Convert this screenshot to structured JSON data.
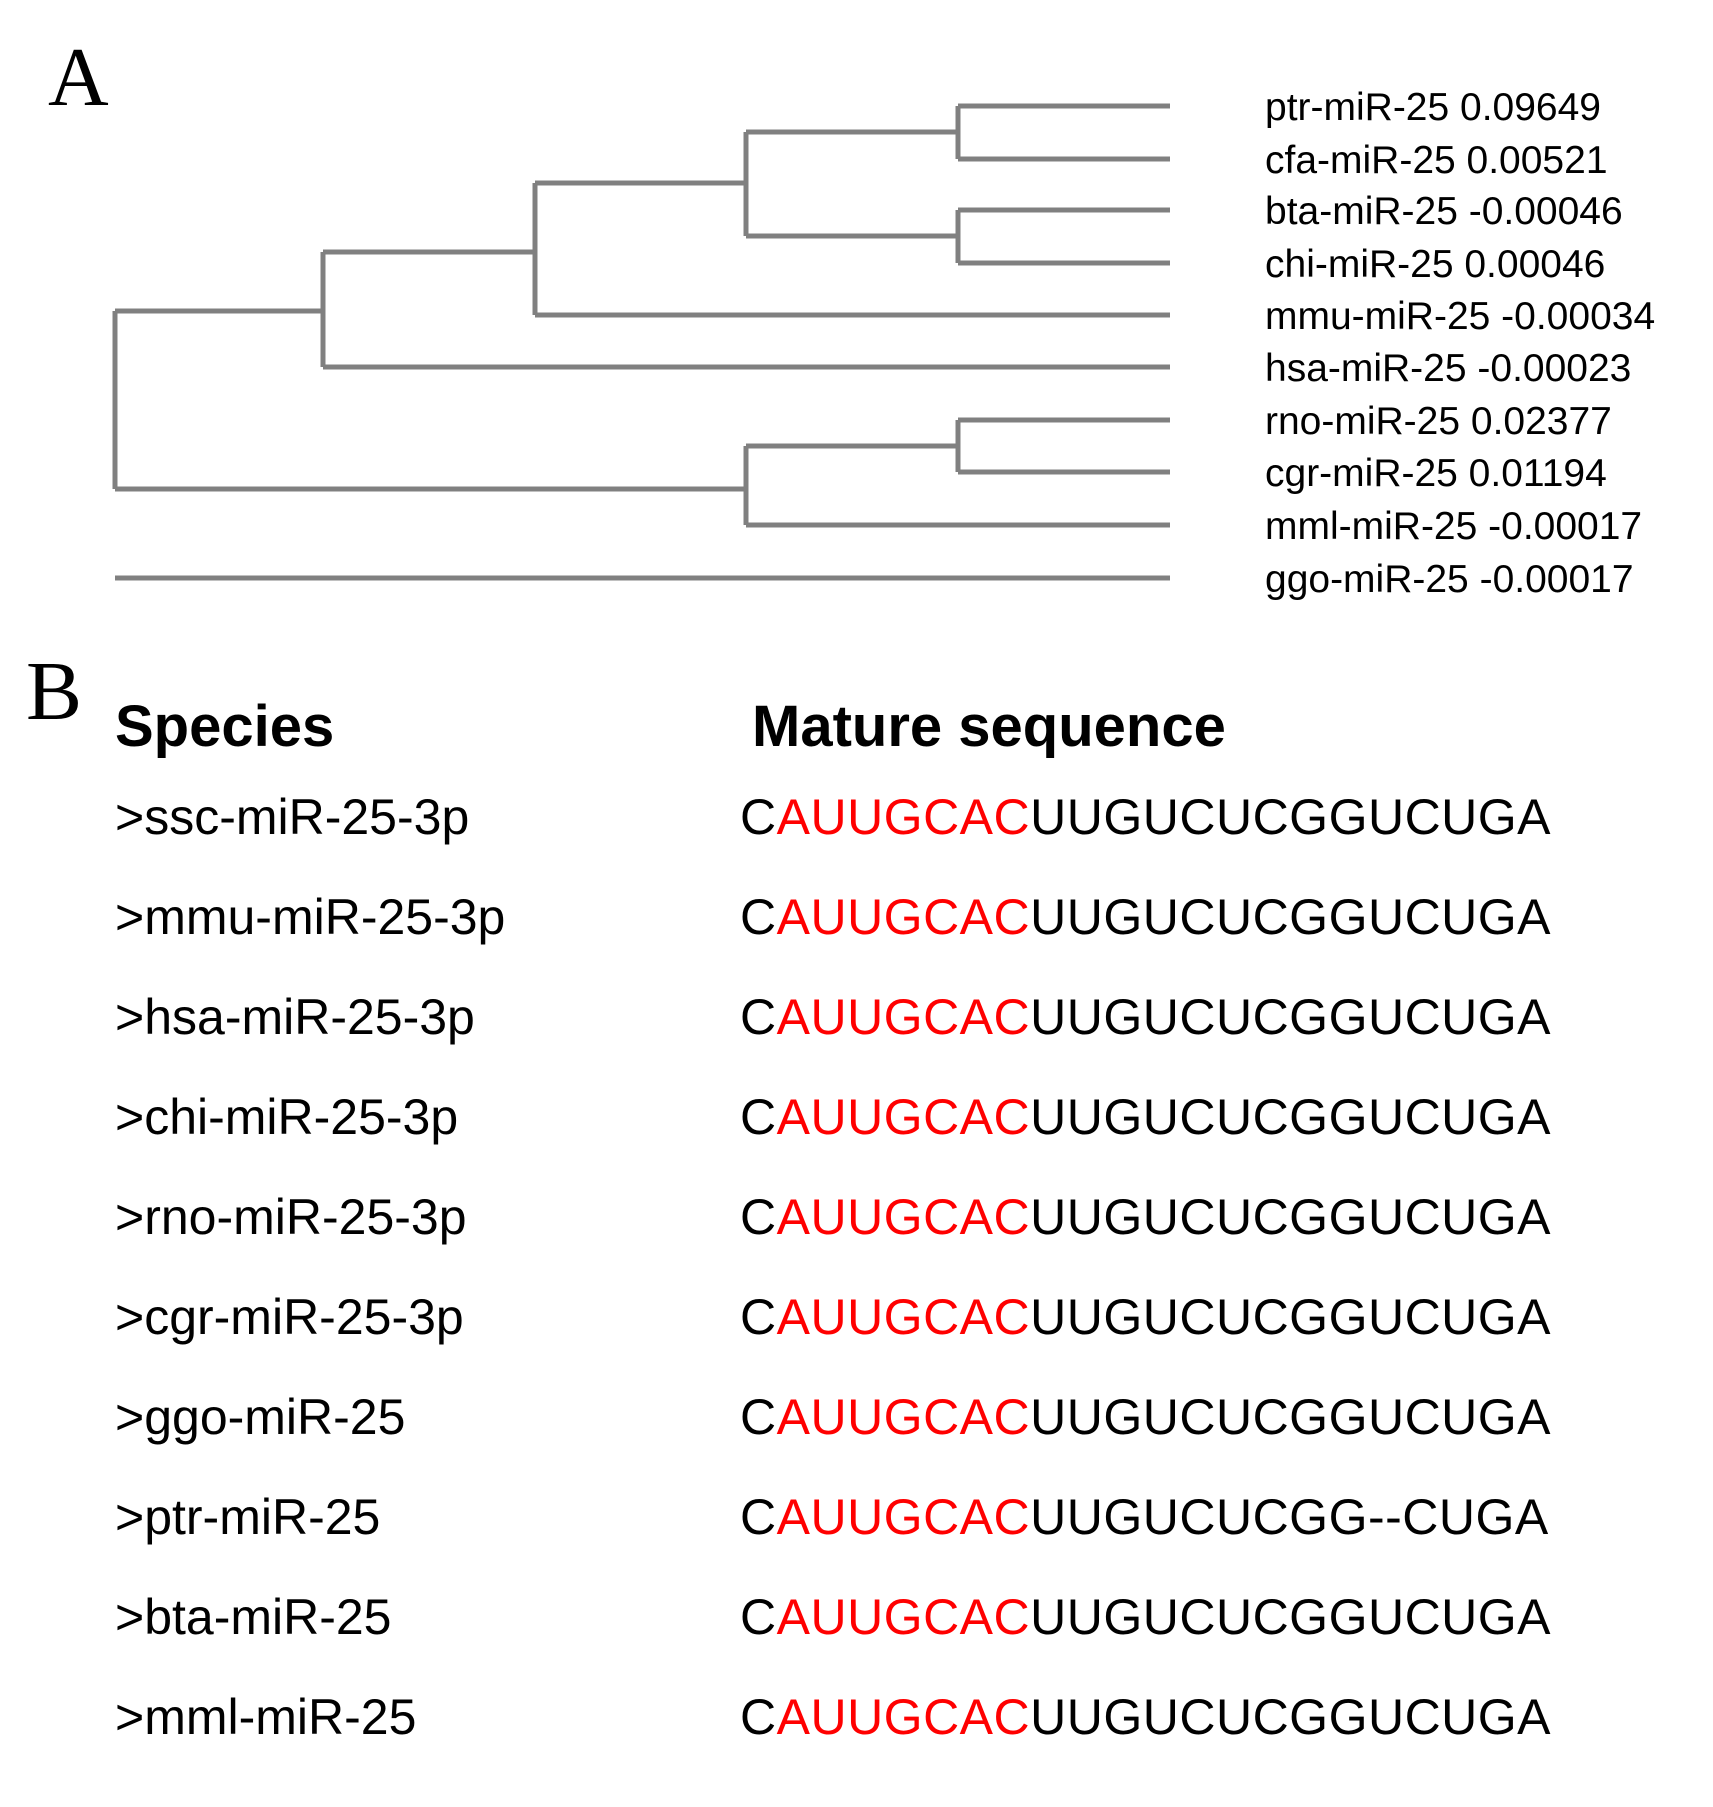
{
  "panel_a": {
    "label": "A",
    "tree": {
      "leaves": [
        {
          "name": "ptr-miR-25",
          "value": "0.09649"
        },
        {
          "name": "cfa-miR-25",
          "value": "0.00521"
        },
        {
          "name": "bta-miR-25",
          "value": "-0.00046"
        },
        {
          "name": "chi-miR-25",
          "value": "0.00046"
        },
        {
          "name": "mmu-miR-25",
          "value": "-0.00034"
        },
        {
          "name": "hsa-miR-25",
          "value": "-0.00023"
        },
        {
          "name": "rno-miR-25",
          "value": "0.02377"
        },
        {
          "name": "cgr-miR-25",
          "value": "0.01194"
        },
        {
          "name": "mml-miR-25",
          "value": "-0.00017"
        },
        {
          "name": "ggo-miR-25",
          "value": "-0.00017"
        }
      ],
      "branch_color": "#808080"
    }
  },
  "panel_b": {
    "label": "B",
    "species_header": "Species",
    "sequence_header": "Mature sequence",
    "seed_color": "#ff0000",
    "rows": [
      {
        "species": ">ssc-miR-25-3p",
        "prefix": "C",
        "seed": "AUUGCAC",
        "rest": "UUGUCUCGGUCUGA"
      },
      {
        "species": ">mmu-miR-25-3p",
        "prefix": "C",
        "seed": "AUUGCAC",
        "rest": "UUGUCUCGGUCUGA"
      },
      {
        "species": ">hsa-miR-25-3p",
        "prefix": "C",
        "seed": "AUUGCAC",
        "rest": "UUGUCUCGGUCUGA"
      },
      {
        "species": ">chi-miR-25-3p",
        "prefix": "C",
        "seed": "AUUGCAC",
        "rest": "UUGUCUCGGUCUGA"
      },
      {
        "species": ">rno-miR-25-3p",
        "prefix": "C",
        "seed": "AUUGCAC",
        "rest": "UUGUCUCGGUCUGA"
      },
      {
        "species": ">cgr-miR-25-3p",
        "prefix": "C",
        "seed": "AUUGCAC",
        "rest": "UUGUCUCGGUCUGA"
      },
      {
        "species": ">ggo-miR-25",
        "prefix": "C",
        "seed": "AUUGCAC",
        "rest": "UUGUCUCGGUCUGA"
      },
      {
        "species": ">ptr-miR-25",
        "prefix": "C",
        "seed": "AUUGCAC",
        "rest": "UUGUCUCGG--CUGA"
      },
      {
        "species": ">bta-miR-25",
        "prefix": "C",
        "seed": "AUUGCAC",
        "rest": "UUGUCUCGGUCUGA"
      },
      {
        "species": ">mml-miR-25",
        "prefix": "C",
        "seed": "AUUGCAC",
        "rest": "UUGUCUCGGUCUGA"
      }
    ]
  }
}
